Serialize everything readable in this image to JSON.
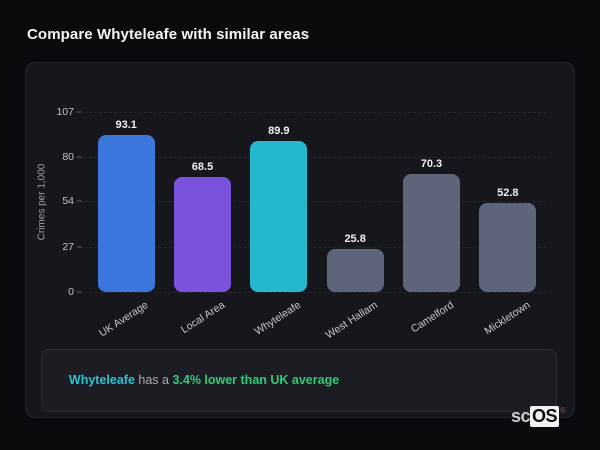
{
  "page": {
    "title": "Compare Whyteleafe with similar areas"
  },
  "chart_data": {
    "type": "bar",
    "title": "Compare Whyteleafe with similar areas",
    "xlabel": "",
    "ylabel": "Crimes per 1,000",
    "categories": [
      "UK Average",
      "Local Area",
      "Whyteleafe",
      "West Hallam",
      "Camelford",
      "Mickletown"
    ],
    "values": [
      93.1,
      68.5,
      89.9,
      25.8,
      70.3,
      52.8
    ],
    "bar_colors": [
      "#3b76dd",
      "#7a53dd",
      "#25b7cd",
      "#5c6579",
      "#5c6579",
      "#5c6579"
    ],
    "y_ticks": [
      107,
      80,
      54,
      27,
      0
    ],
    "ylim": [
      0,
      107
    ],
    "grid": "horizontal-dashed",
    "legend": "none",
    "value_labels": "above-bars"
  },
  "note": {
    "area": "Whyteleafe",
    "middle": " has a ",
    "highlight": "3.4% lower than UK average"
  },
  "logo": {
    "prefix": "sc",
    "suffix": "OS",
    "reg": "®"
  },
  "colors": {
    "page_background": "#0a0b0e",
    "card_background": "#16171c",
    "card_border": "#26282e",
    "accent_blue": "#3b76dd",
    "accent_purple": "#7a53dd",
    "accent_teal": "#25b7cd",
    "neutral_bar": "#5c6579",
    "note_green": "#2ecc79",
    "note_teal": "#2ec3d4"
  }
}
